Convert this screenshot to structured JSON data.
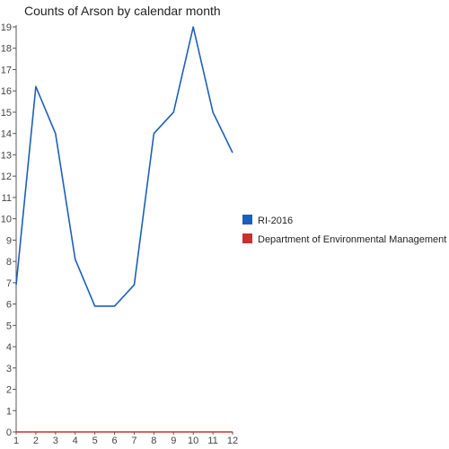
{
  "chart_data": {
    "type": "line",
    "title": "Counts of Arson by calendar month",
    "xlabel": "",
    "ylabel": "",
    "x": [
      1,
      2,
      3,
      4,
      5,
      6,
      7,
      8,
      9,
      10,
      11,
      12
    ],
    "xlim": [
      1,
      12
    ],
    "ylim": [
      0,
      19
    ],
    "yticks": [
      0,
      1,
      2,
      3,
      4,
      5,
      6,
      7,
      8,
      9,
      10,
      11,
      12,
      13,
      14,
      15,
      16,
      17,
      18,
      19
    ],
    "grid": false,
    "legend_position": "right",
    "series": [
      {
        "name": "RI-2016",
        "color": "#1c5fba",
        "values": [
          6.9,
          16.2,
          14.0,
          8.1,
          5.9,
          5.9,
          6.9,
          14.0,
          15.0,
          19.0,
          15.0,
          13.1
        ]
      },
      {
        "name": "Department of Environmental Management",
        "color": "#c9302c",
        "values": [
          0,
          0,
          0,
          0,
          0,
          0,
          0,
          0,
          0,
          0,
          0,
          0
        ]
      }
    ]
  },
  "colors": {
    "axis": "#555555",
    "text": "#222222"
  }
}
